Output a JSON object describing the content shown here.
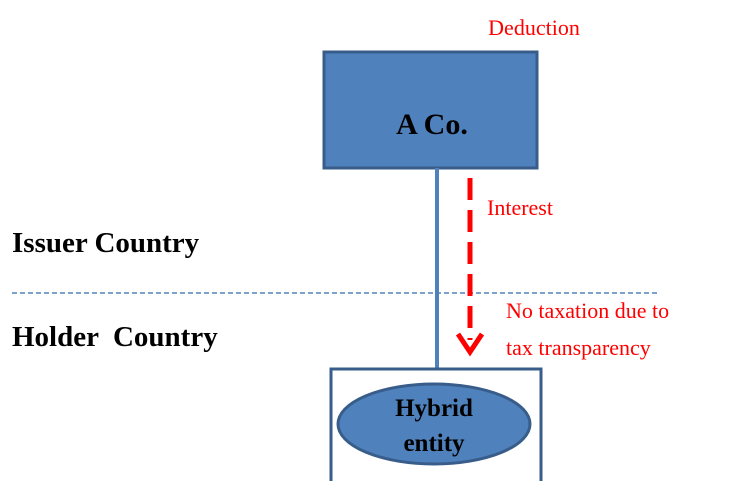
{
  "labels": {
    "deduction": "Deduction",
    "interest": "Interest",
    "issuer_country": "Issuer Country",
    "holder_country": "Holder  Country",
    "no_taxation": [
      "No taxation due to",
      "tax transparency"
    ]
  },
  "nodes": [
    {
      "label": "A Co."
    },
    {
      "label": [
        "Hybrid",
        "entity"
      ]
    }
  ]
}
